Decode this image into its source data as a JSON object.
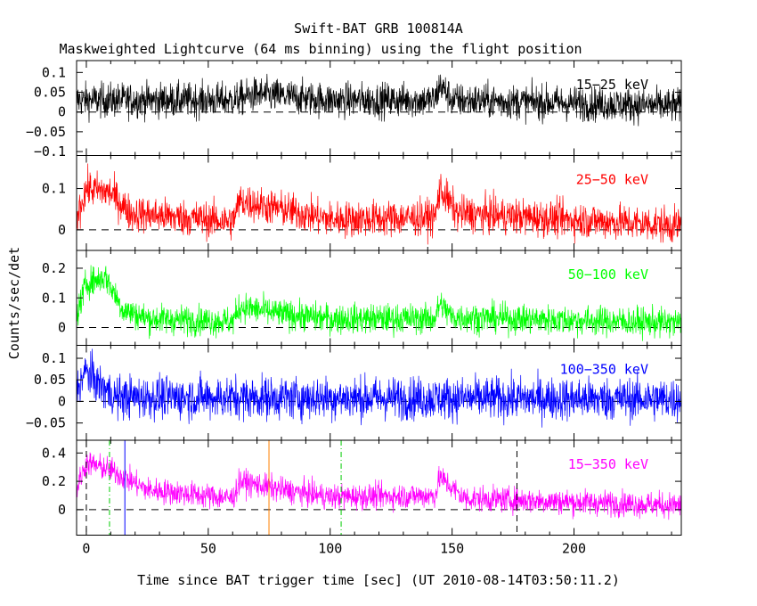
{
  "chart_data": {
    "type": "line",
    "title": "Swift-BAT GRB 100814A",
    "subtitle": "Maskweighted Lightcurve (64 ms binning) using the flight position",
    "xlabel": "Time since BAT trigger time [sec] (UT 2010-08-14T03:50:11.2)",
    "ylabel": "Counts/sec/det",
    "xlim": [
      -4,
      244
    ],
    "xticks": [
      0,
      50,
      100,
      150,
      200
    ],
    "grid": false,
    "panels": [
      {
        "name": "15-25 keV",
        "label": "15−25 keV",
        "color": "#000000",
        "ylim": [
          -0.11,
          0.13
        ],
        "yticks": [
          {
            "v": 0.1,
            "t": "0.1"
          },
          {
            "v": 0.05,
            "t": "0.05"
          },
          {
            "v": 0,
            "t": "0"
          },
          {
            "v": -0.05,
            "t": "−0.05"
          },
          {
            "v": -0.1,
            "t": "−0.1"
          }
        ],
        "baseline": 0,
        "noise": 0.022,
        "profile": [
          [
            -4,
            0.03
          ],
          [
            60,
            0.03
          ],
          [
            70,
            0.045
          ],
          [
            100,
            0.03
          ],
          [
            143,
            0.03
          ],
          [
            145,
            0.07
          ],
          [
            150,
            0.03
          ],
          [
            244,
            0.015
          ]
        ]
      },
      {
        "name": "25-50 keV",
        "label": "25−50 keV",
        "color": "#ff0000",
        "ylim": [
          -0.05,
          0.18
        ],
        "yticks": [
          {
            "v": 0.1,
            "t": "0.1"
          },
          {
            "v": 0,
            "t": "0"
          }
        ],
        "baseline": 0,
        "noise": 0.022,
        "profile": [
          [
            -4,
            0.03
          ],
          [
            0,
            0.1
          ],
          [
            10,
            0.09
          ],
          [
            18,
            0.04
          ],
          [
            60,
            0.02
          ],
          [
            63,
            0.07
          ],
          [
            80,
            0.05
          ],
          [
            100,
            0.025
          ],
          [
            143,
            0.03
          ],
          [
            145,
            0.1
          ],
          [
            152,
            0.04
          ],
          [
            244,
            0.01
          ]
        ]
      },
      {
        "name": "50-100 keV",
        "label": "50−100 keV",
        "color": "#00ff00",
        "ylim": [
          -0.06,
          0.26
        ],
        "yticks": [
          {
            "v": 0.2,
            "t": "0.2"
          },
          {
            "v": 0.1,
            "t": "0.1"
          },
          {
            "v": 0,
            "t": "0"
          }
        ],
        "baseline": 0,
        "noise": 0.025,
        "profile": [
          [
            -4,
            0.04
          ],
          [
            0,
            0.15
          ],
          [
            8,
            0.17
          ],
          [
            15,
            0.06
          ],
          [
            25,
            0.03
          ],
          [
            60,
            0.02
          ],
          [
            63,
            0.07
          ],
          [
            80,
            0.045
          ],
          [
            100,
            0.03
          ],
          [
            143,
            0.03
          ],
          [
            145,
            0.08
          ],
          [
            150,
            0.035
          ],
          [
            244,
            0.015
          ]
        ]
      },
      {
        "name": "100-350 keV",
        "label": "100−350 keV",
        "color": "#0000ff",
        "ylim": [
          -0.09,
          0.13
        ],
        "yticks": [
          {
            "v": 0.1,
            "t": "0.1"
          },
          {
            "v": 0.05,
            "t": "0.05"
          },
          {
            "v": 0,
            "t": "0"
          },
          {
            "v": -0.05,
            "t": "−0.05"
          }
        ],
        "baseline": 0,
        "noise": 0.025,
        "profile": [
          [
            -4,
            0.03
          ],
          [
            0,
            0.07
          ],
          [
            5,
            0.04
          ],
          [
            12,
            0.01
          ],
          [
            244,
            0.005
          ]
        ]
      },
      {
        "name": "15-350 keV",
        "label": "15−350 keV",
        "color": "#ff00ff",
        "ylim": [
          -0.18,
          0.49
        ],
        "yticks": [
          {
            "v": 0.4,
            "t": "0.4"
          },
          {
            "v": 0.2,
            "t": "0.2"
          },
          {
            "v": 0,
            "t": "0"
          }
        ],
        "baseline": 0,
        "noise": 0.045,
        "profile": [
          [
            -4,
            0.15
          ],
          [
            0,
            0.33
          ],
          [
            10,
            0.28
          ],
          [
            25,
            0.14
          ],
          [
            60,
            0.08
          ],
          [
            63,
            0.2
          ],
          [
            80,
            0.14
          ],
          [
            100,
            0.09
          ],
          [
            143,
            0.1
          ],
          [
            145,
            0.23
          ],
          [
            155,
            0.08
          ],
          [
            244,
            0.03
          ]
        ],
        "markers": [
          {
            "x": 0,
            "color": "#000000",
            "style": "dash"
          },
          {
            "x": 9.5,
            "color": "#00cc00",
            "style": "dashdot"
          },
          {
            "x": 15.8,
            "color": "#0000ff",
            "style": "solid"
          },
          {
            "x": 74.9,
            "color": "#ff8000",
            "style": "solid"
          },
          {
            "x": 104.5,
            "color": "#00cc00",
            "style": "dashdot"
          },
          {
            "x": 176.6,
            "color": "#000000",
            "style": "dash"
          }
        ]
      }
    ]
  }
}
